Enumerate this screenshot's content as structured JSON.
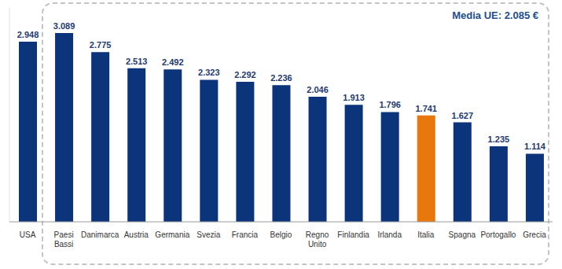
{
  "chart_data": {
    "type": "bar",
    "annotation": "Media UE: 2.085 €",
    "categories": [
      "USA",
      "Paesi Bassi",
      "Danimarca",
      "Austria",
      "Germania",
      "Svezia",
      "Francia",
      "Belgio",
      "Regno Unito",
      "Finlandia",
      "Irlanda",
      "Italia",
      "Spagna",
      "Portogallo",
      "Grecia"
    ],
    "values": [
      2948,
      3089,
      2775,
      2513,
      2492,
      2323,
      2292,
      2236,
      2046,
      1913,
      1796,
      1741,
      1627,
      1235,
      1114
    ],
    "value_labels": [
      "2.948",
      "3.089",
      "2.775",
      "2.513",
      "2.492",
      "2.323",
      "2.292",
      "2.236",
      "2.046",
      "1.913",
      "1.796",
      "1.741",
      "1.627",
      "1.235",
      "1.114"
    ],
    "colors": [
      "#0b347a",
      "#0b347a",
      "#0b347a",
      "#0b347a",
      "#0b347a",
      "#0b347a",
      "#0b347a",
      "#0b347a",
      "#0b347a",
      "#0b347a",
      "#0b347a",
      "#e8780c",
      "#0b347a",
      "#0b347a",
      "#0b347a"
    ],
    "ylim": [
      0,
      3500
    ],
    "grid": false,
    "data_labels": true,
    "tick_labels": "x"
  }
}
